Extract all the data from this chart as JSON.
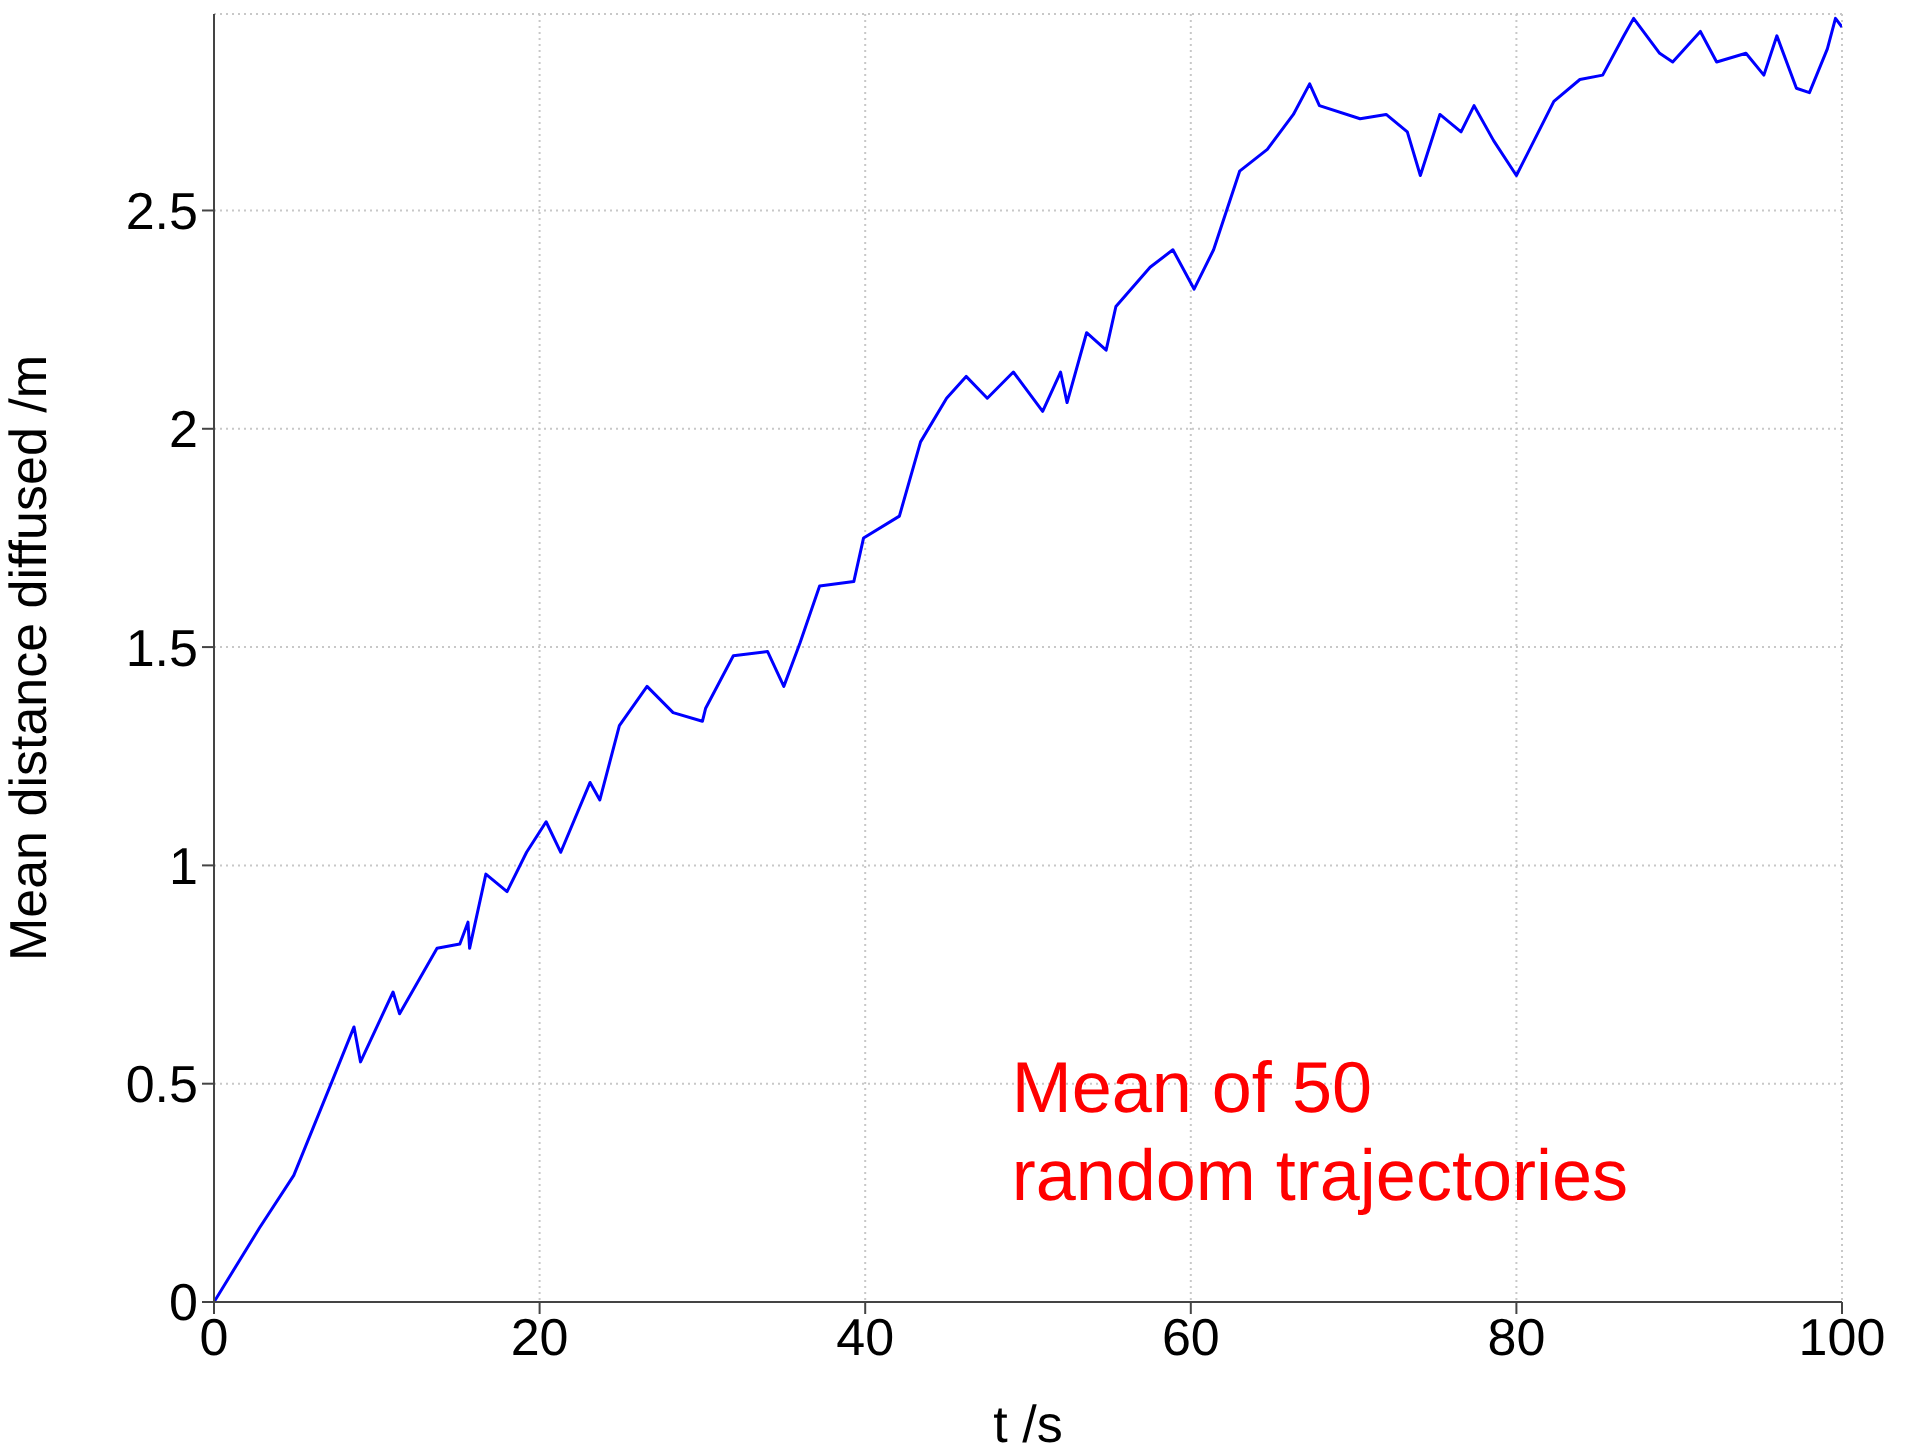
{
  "chart_data": {
    "type": "line",
    "xlabel": "t /s",
    "ylabel": "Mean distance diffused /m",
    "annotations": [
      "Mean of 50\nrandom trajectories"
    ],
    "xlim": [
      0,
      100
    ],
    "xticks": [
      0,
      20,
      40,
      60,
      80,
      100
    ],
    "ylim": [
      0,
      2.95
    ],
    "yticks": [
      0,
      0.5,
      1,
      1.5,
      2,
      2.5
    ],
    "grid": true,
    "marker": "none",
    "line_style": "solid",
    "series": [
      {
        "color": "#0000ff",
        "x": [
          0,
          2.8,
          4.9,
          6.1,
          7.3,
          8.6,
          9.0,
          11.0,
          11.4,
          13.7,
          15.1,
          15.6,
          15.7,
          16.7,
          18.0,
          19.2,
          20.4,
          21.3,
          23.1,
          23.7,
          24.9,
          26.6,
          28.2,
          30.0,
          30.2,
          31.9,
          34.0,
          35.0,
          36.0,
          37.2,
          39.3,
          39.9,
          42.1,
          43.4,
          45.0,
          46.2,
          47.5,
          49.1,
          50.9,
          52.0,
          52.4,
          53.6,
          54.8,
          55.4,
          57.5,
          58.9,
          60.2,
          61.4,
          63.0,
          64.7,
          66.3,
          67.3,
          67.9,
          70.4,
          72.0,
          73.3,
          74.1,
          75.3,
          76.6,
          77.4,
          78.6,
          80.0,
          82.3,
          83.9,
          85.3,
          86.6,
          87.2,
          88.8,
          89.6,
          91.3,
          92.3,
          94.1,
          95.2,
          96.0,
          97.2,
          98.0,
          99.1,
          99.6,
          100
        ],
        "values": [
          0,
          0.17,
          0.29,
          0.4,
          0.51,
          0.63,
          0.55,
          0.71,
          0.66,
          0.81,
          0.82,
          0.87,
          0.81,
          0.98,
          0.94,
          1.03,
          1.1,
          1.03,
          1.19,
          1.15,
          1.32,
          1.41,
          1.35,
          1.33,
          1.36,
          1.48,
          1.49,
          1.41,
          1.51,
          1.64,
          1.65,
          1.75,
          1.8,
          1.97,
          2.07,
          2.12,
          2.07,
          2.13,
          2.04,
          2.13,
          2.06,
          2.22,
          2.18,
          2.28,
          2.37,
          2.41,
          2.32,
          2.41,
          2.59,
          2.64,
          2.72,
          2.79,
          2.74,
          2.71,
          2.72,
          2.68,
          2.58,
          2.72,
          2.68,
          2.74,
          2.66,
          2.58,
          2.75,
          2.8,
          2.81,
          2.9,
          2.94,
          2.86,
          2.84,
          2.91,
          2.84,
          2.86,
          2.81,
          2.9,
          2.78,
          2.77,
          2.87,
          2.94,
          2.92
        ]
      }
    ]
  }
}
